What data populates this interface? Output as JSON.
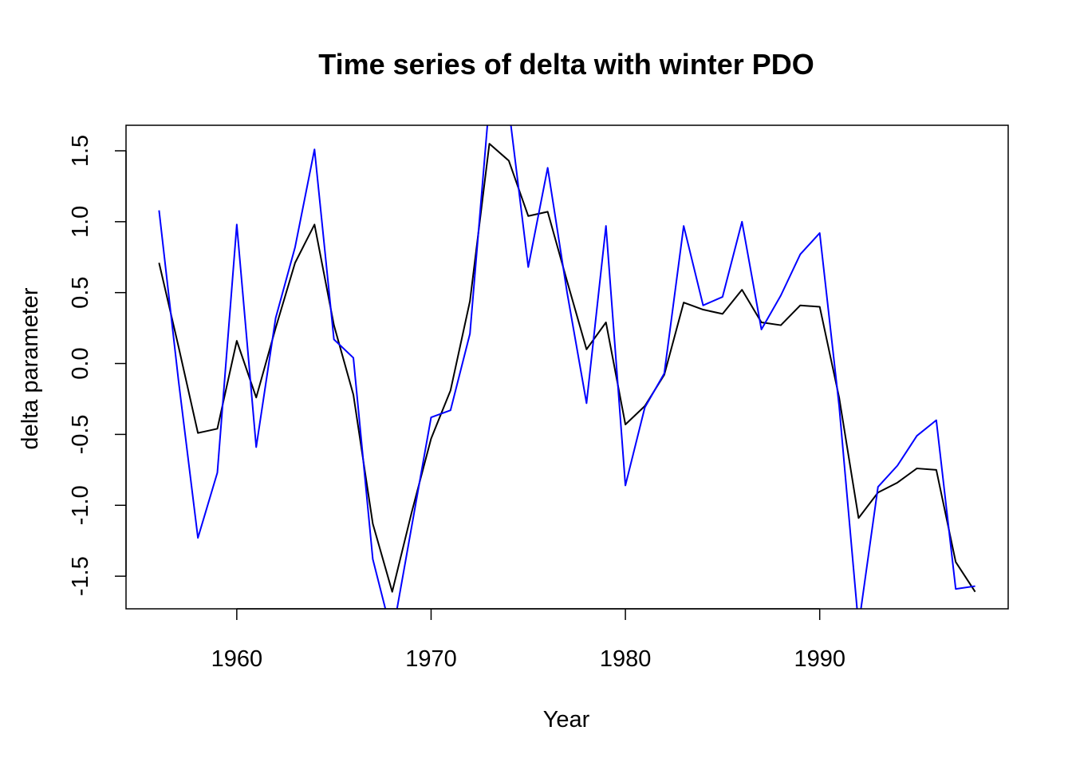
{
  "chart_data": {
    "type": "line",
    "title": "Time series of delta with winter PDO",
    "xlabel": "Year",
    "ylabel": "delta parameter",
    "xlim": [
      1954.3,
      1999.7
    ],
    "ylim": [
      -1.73,
      1.68
    ],
    "x_ticks": [
      1960,
      1970,
      1980,
      1990
    ],
    "y_ticks": [
      -1.5,
      -1.0,
      -0.5,
      0.0,
      0.5,
      1.0,
      1.5
    ],
    "y_tick_labels": [
      "-1.5",
      "-1.0",
      "-0.5",
      "0.0",
      "0.5",
      "1.0",
      "1.5"
    ],
    "x_tick_labels": [
      "1960",
      "1970",
      "1980",
      "1990"
    ],
    "grid": false,
    "legend": "none",
    "x": [
      1956,
      1957,
      1958,
      1959,
      1960,
      1961,
      1962,
      1963,
      1964,
      1965,
      1966,
      1967,
      1968,
      1969,
      1970,
      1971,
      1972,
      1973,
      1974,
      1975,
      1976,
      1977,
      1978,
      1979,
      1980,
      1981,
      1982,
      1983,
      1984,
      1985,
      1986,
      1987,
      1988,
      1989,
      1990,
      1991,
      1992,
      1993,
      1994,
      1995,
      1996,
      1997,
      1998
    ],
    "series": [
      {
        "color": "#000000",
        "values": [
          0.71,
          0.12,
          -0.49,
          -0.46,
          0.16,
          -0.24,
          0.25,
          0.71,
          0.98,
          0.27,
          -0.22,
          -1.13,
          -1.61,
          -1.05,
          -0.53,
          -0.19,
          0.44,
          1.55,
          1.43,
          1.04,
          1.07,
          0.58,
          0.1,
          0.29,
          -0.43,
          -0.3,
          -0.08,
          0.43,
          0.38,
          0.35,
          0.52,
          0.29,
          0.27,
          0.41,
          0.4,
          -0.24,
          -1.09,
          -0.91,
          -0.84,
          -0.74,
          -0.75,
          -1.4,
          -1.61
        ]
      },
      {
        "color": "#0000ff",
        "values": [
          1.08,
          -0.12,
          -1.23,
          -0.77,
          0.98,
          -0.59,
          0.32,
          0.82,
          1.51,
          0.17,
          0.04,
          -1.38,
          -1.92,
          -1.15,
          -0.38,
          -0.33,
          0.21,
          1.85,
          1.8,
          0.68,
          1.38,
          0.5,
          -0.28,
          0.97,
          -0.86,
          -0.31,
          -0.07,
          0.97,
          0.41,
          0.47,
          1.0,
          0.24,
          0.48,
          0.77,
          0.92,
          -0.3,
          -1.85,
          -0.87,
          -0.72,
          -0.51,
          -0.4,
          -1.59,
          -1.57
        ]
      }
    ]
  }
}
